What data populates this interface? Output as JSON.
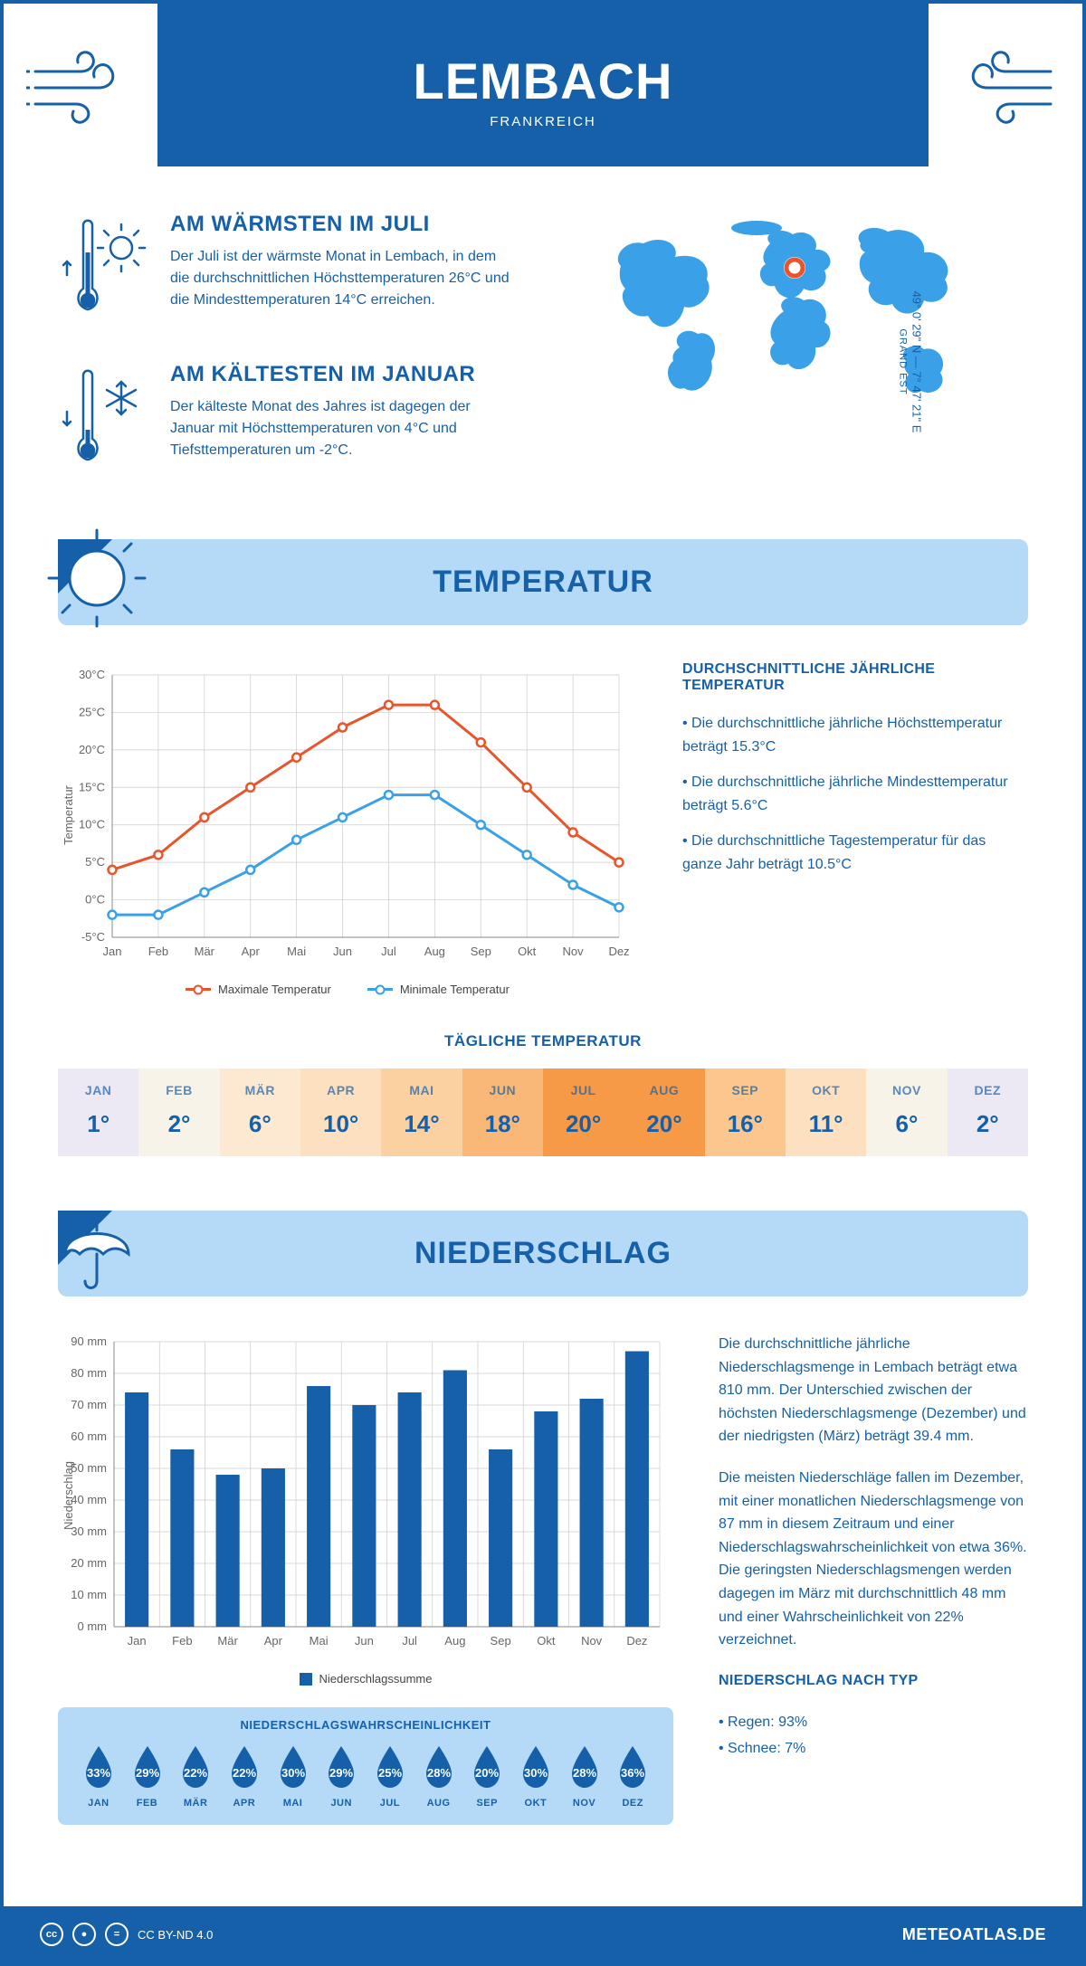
{
  "header": {
    "city": "LEMBACH",
    "country": "FRANKREICH"
  },
  "location": {
    "coords": "49° 0' 29\" N — 7° 47' 21\" E",
    "region": "GRAND EST",
    "marker_color": "#e8552b"
  },
  "colors": {
    "primary": "#1560a8",
    "lightblue": "#b5daf7",
    "midblue": "#3aa0e8",
    "orange": "#e8552b",
    "white": "#ffffff",
    "grid": "#cccccc"
  },
  "facts": {
    "warm": {
      "title": "AM WÄRMSTEN IM JULI",
      "text": "Der Juli ist der wärmste Monat in Lembach, in dem die durchschnittlichen Höchsttemperaturen 26°C und die Mindesttemperaturen 14°C erreichen."
    },
    "cold": {
      "title": "AM KÄLTESTEN IM JANUAR",
      "text": "Der kälteste Monat des Jahres ist dagegen der Januar mit Höchsttemperaturen von 4°C und Tiefsttemperaturen um -2°C."
    }
  },
  "sections": {
    "temperature": "TEMPERATUR",
    "precipitation": "NIEDERSCHLAG"
  },
  "months": [
    "Jan",
    "Feb",
    "Mär",
    "Apr",
    "Mai",
    "Jun",
    "Jul",
    "Aug",
    "Sep",
    "Okt",
    "Nov",
    "Dez"
  ],
  "months_upper": [
    "JAN",
    "FEB",
    "MÄR",
    "APR",
    "MAI",
    "JUN",
    "JUL",
    "AUG",
    "SEP",
    "OKT",
    "NOV",
    "DEZ"
  ],
  "temp_chart": {
    "type": "line",
    "y_axis": {
      "min": -5,
      "max": 30,
      "step": 5,
      "labels": [
        "-5°C",
        "0°C",
        "5°C",
        "10°C",
        "15°C",
        "20°C",
        "25°C",
        "30°C"
      ],
      "title": "Temperatur"
    },
    "series": {
      "max": {
        "label": "Maximale Temperatur",
        "color": "#e8552b",
        "values": [
          4,
          6,
          11,
          15,
          19,
          23,
          26,
          26,
          21,
          15,
          9,
          5
        ]
      },
      "min": {
        "label": "Minimale Temperatur",
        "color": "#3aa0e8",
        "values": [
          -2,
          -2,
          1,
          4,
          8,
          11,
          14,
          14,
          10,
          6,
          2,
          -1
        ]
      }
    },
    "line_width": 3,
    "marker_size": 5,
    "background": "#ffffff"
  },
  "temp_summary": {
    "title": "DURCHSCHNITTLICHE JÄHRLICHE TEMPERATUR",
    "b1": "• Die durchschnittliche jährliche Höchsttemperatur beträgt 15.3°C",
    "b2": "• Die durchschnittliche jährliche Mindesttemperatur beträgt 5.6°C",
    "b3": "• Die durchschnittliche Tagestemperatur für das ganze Jahr beträgt 10.5°C"
  },
  "daily_temp": {
    "title": "TÄGLICHE TEMPERATUR",
    "values": [
      "1°",
      "2°",
      "6°",
      "10°",
      "14°",
      "18°",
      "20°",
      "20°",
      "16°",
      "11°",
      "6°",
      "2°"
    ],
    "colors": [
      "#ece8f4",
      "#f8f3e9",
      "#fde9d2",
      "#fde0c0",
      "#fcd1a1",
      "#f9b877",
      "#f79a48",
      "#f79a48",
      "#fcc78e",
      "#fde0c0",
      "#f8f3e9",
      "#ece8f4"
    ]
  },
  "precip_chart": {
    "type": "bar",
    "y_axis": {
      "min": 0,
      "max": 90,
      "step": 10,
      "labels": [
        "0 mm",
        "10 mm",
        "20 mm",
        "30 mm",
        "40 mm",
        "50 mm",
        "60 mm",
        "70 mm",
        "80 mm",
        "90 mm"
      ],
      "title": "Niederschlag"
    },
    "legend": "Niederschlagssumme",
    "bar_color": "#1560a8",
    "bar_width": 0.52,
    "values": [
      74,
      56,
      48,
      50,
      76,
      70,
      74,
      81,
      56,
      68,
      72,
      87
    ]
  },
  "precip_text": {
    "p1": "Die durchschnittliche jährliche Niederschlagsmenge in Lembach beträgt etwa 810 mm. Der Unterschied zwischen der höchsten Niederschlagsmenge (Dezember) und der niedrigsten (März) beträgt 39.4 mm.",
    "p2": "Die meisten Niederschläge fallen im Dezember, mit einer monatlichen Niederschlagsmenge von 87 mm in diesem Zeitraum und einer Niederschlagswahrscheinlichkeit von etwa 36%. Die geringsten Niederschlagsmengen werden dagegen im März mit durchschnittlich 48 mm und einer Wahrscheinlichkeit von 22% verzeichnet.",
    "type_title": "NIEDERSCHLAG NACH TYP",
    "type_b1": "• Regen: 93%",
    "type_b2": "• Schnee: 7%"
  },
  "precip_prob": {
    "title": "NIEDERSCHLAGSWAHRSCHEINLICHKEIT",
    "values": [
      "33%",
      "29%",
      "22%",
      "22%",
      "30%",
      "29%",
      "25%",
      "28%",
      "20%",
      "30%",
      "28%",
      "36%"
    ],
    "drop_color": "#1560a8"
  },
  "footer": {
    "license": "CC BY-ND 4.0",
    "brand": "METEOATLAS.DE"
  }
}
